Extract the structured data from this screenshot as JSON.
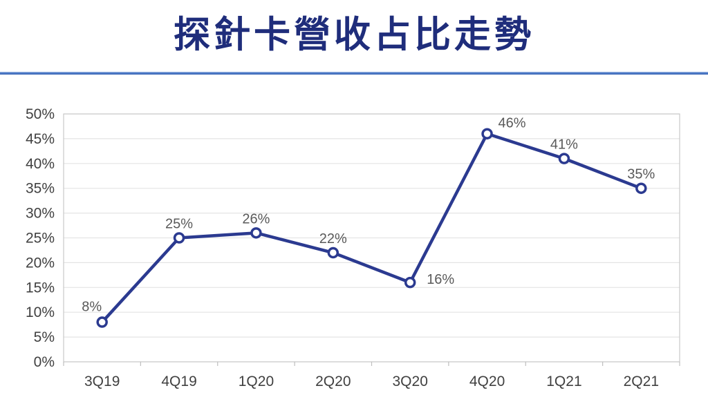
{
  "title": "探針卡營收占比走勢",
  "chart_data": {
    "type": "line",
    "title": "探針卡營收占比走勢",
    "categories": [
      "3Q19",
      "4Q19",
      "1Q20",
      "2Q20",
      "3Q20",
      "4Q20",
      "1Q21",
      "2Q21"
    ],
    "values": [
      8,
      25,
      26,
      22,
      16,
      46,
      41,
      35
    ],
    "data_labels": [
      "8%",
      "25%",
      "26%",
      "22%",
      "16%",
      "46%",
      "41%",
      "35%"
    ],
    "y_ticks_bottom_to_top": [
      "0%",
      "5%",
      "10%",
      "15%",
      "20%",
      "25%",
      "30%",
      "35%",
      "40%",
      "45%",
      "50%"
    ],
    "ylim": [
      0,
      50
    ],
    "y_step": 5,
    "xlabel": "",
    "ylabel": "",
    "grid": true,
    "legend": "none",
    "label_positions": [
      "above-left",
      "above",
      "above",
      "above",
      "right",
      "above-right",
      "above",
      "above"
    ],
    "colors": {
      "line": "#2B3A90",
      "marker_fill": "#FFFFFF",
      "data_label": "#595959",
      "axis_text": "#404040",
      "gridline": "#E4E4E4",
      "plot_border": "#C9C9C9",
      "tick": "#BFBFBF",
      "title": "#1F2D7B",
      "divider": "#4472C4"
    }
  }
}
